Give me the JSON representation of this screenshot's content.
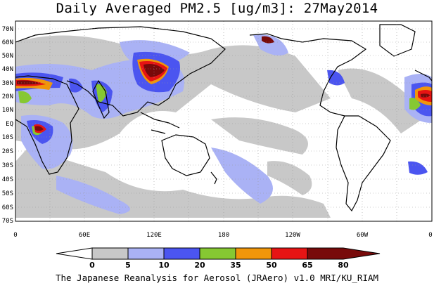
{
  "title": "Daily Averaged PM2.5 [ug/m3]: 27May2014",
  "footer": "The Japanese Reanalysis for Aerosol (JRAero) v1.0 MRI/KU_RIAM",
  "map": {
    "lat_labels": [
      "70N",
      "60N",
      "50N",
      "40N",
      "30N",
      "20N",
      "10N",
      "EQ",
      "10S",
      "20S",
      "30S",
      "40S",
      "50S",
      "60S",
      "70S"
    ],
    "lon_labels": [
      "0",
      "60E",
      "120E",
      "180",
      "120W",
      "60W",
      "0"
    ],
    "gridlines": "dotted"
  },
  "colorbar": {
    "levels": [
      "0",
      "5",
      "10",
      "20",
      "35",
      "50",
      "65",
      "80"
    ],
    "colors": [
      "#ffffff",
      "#c8c8c8",
      "#aab2f5",
      "#4b55f0",
      "#86c832",
      "#f0960a",
      "#e61414",
      "#780a0a"
    ]
  }
}
